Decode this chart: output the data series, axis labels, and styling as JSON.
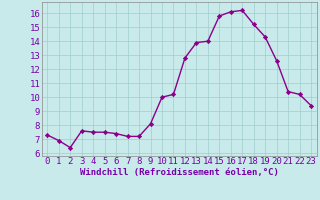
{
  "x": [
    0,
    1,
    2,
    3,
    4,
    5,
    6,
    7,
    8,
    9,
    10,
    11,
    12,
    13,
    14,
    15,
    16,
    17,
    18,
    19,
    20,
    21,
    22,
    23
  ],
  "y": [
    7.3,
    6.9,
    6.4,
    7.6,
    7.5,
    7.5,
    7.4,
    7.2,
    7.2,
    8.1,
    10.0,
    10.2,
    12.8,
    13.9,
    14.0,
    15.8,
    16.1,
    16.2,
    15.2,
    14.3,
    12.6,
    10.4,
    10.2,
    9.4
  ],
  "line_color": "#8b008b",
  "marker": "D",
  "markersize": 2.2,
  "linewidth": 1.0,
  "bg_color": "#c8eaea",
  "grid_color": "#a0cccc",
  "xlabel": "Windchill (Refroidissement éolien,°C)",
  "xlabel_fontsize": 6.5,
  "ylabel_ticks": [
    6,
    7,
    8,
    9,
    10,
    11,
    12,
    13,
    14,
    15,
    16
  ],
  "xlim": [
    -0.5,
    23.5
  ],
  "ylim": [
    5.8,
    16.8
  ],
  "tick_fontsize": 6.5,
  "xtick_labels": [
    "0",
    "1",
    "2",
    "3",
    "4",
    "5",
    "6",
    "7",
    "8",
    "9",
    "10",
    "11",
    "12",
    "13",
    "14",
    "15",
    "16",
    "17",
    "18",
    "19",
    "20",
    "21",
    "22",
    "23"
  ]
}
